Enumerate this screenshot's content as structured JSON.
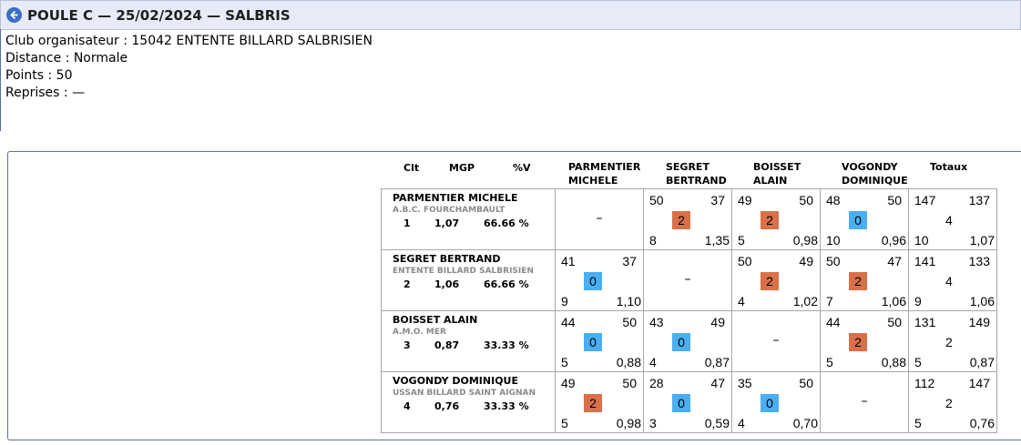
{
  "header": {
    "title": "POULE C — 25/02/2024 — SALBRIS"
  },
  "info": {
    "club": "Club organisateur : 15042 ENTENTE BILLARD SALBRISIEN",
    "distance": "Distance : Normale",
    "points": "Points : 50",
    "reprises": "Reprises : —"
  },
  "table": {
    "headers": {
      "clt": "Clt",
      "mgp": "MGP",
      "pctv": "%V",
      "c1": [
        "PARMENTIER",
        "MICHELE"
      ],
      "c2": [
        "SEGRET",
        "BERTRAND"
      ],
      "c3": [
        "BOISSET",
        "ALAIN"
      ],
      "c4": [
        "VOGONDY",
        "DOMINIQUE"
      ],
      "totals": "Totaux"
    },
    "dash": "–",
    "colors": {
      "win": "#d9704a",
      "loss": "#4aaef0"
    },
    "rows": [
      {
        "name": "PARMENTIER MICHELE",
        "club": "A.B.C. FOURCHAMBAULT",
        "clt": "1",
        "mgp": "1,07",
        "pct": "66.66 %",
        "cells": [
          null,
          {
            "a": "50",
            "b": "37",
            "pts": "2",
            "rep": "8",
            "avg": "1,35",
            "win": true
          },
          {
            "a": "49",
            "b": "50",
            "pts": "2",
            "rep": "5",
            "avg": "0,98",
            "win": true
          },
          {
            "a": "48",
            "b": "50",
            "pts": "0",
            "rep": "10",
            "avg": "0,96",
            "win": false
          }
        ],
        "total": {
          "a": "147",
          "b": "137",
          "pts": "4",
          "rep": "10",
          "avg": "1,07"
        }
      },
      {
        "name": "SEGRET BERTRAND",
        "club": "ENTENTE BILLARD SALBRISIEN",
        "clt": "2",
        "mgp": "1,06",
        "pct": "66.66 %",
        "cells": [
          {
            "a": "41",
            "b": "37",
            "pts": "0",
            "rep": "9",
            "avg": "1,10",
            "win": false
          },
          null,
          {
            "a": "50",
            "b": "49",
            "pts": "2",
            "rep": "4",
            "avg": "1,02",
            "win": true
          },
          {
            "a": "50",
            "b": "47",
            "pts": "2",
            "rep": "7",
            "avg": "1,06",
            "win": true
          }
        ],
        "total": {
          "a": "141",
          "b": "133",
          "pts": "4",
          "rep": "9",
          "avg": "1,06"
        }
      },
      {
        "name": "BOISSET ALAIN",
        "club": "A.M.O. MER",
        "clt": "3",
        "mgp": "0,87",
        "pct": "33.33 %",
        "cells": [
          {
            "a": "44",
            "b": "50",
            "pts": "0",
            "rep": "5",
            "avg": "0,88",
            "win": false
          },
          {
            "a": "43",
            "b": "49",
            "pts": "0",
            "rep": "4",
            "avg": "0,87",
            "win": false
          },
          null,
          {
            "a": "44",
            "b": "50",
            "pts": "2",
            "rep": "5",
            "avg": "0,88",
            "win": true
          }
        ],
        "total": {
          "a": "131",
          "b": "149",
          "pts": "2",
          "rep": "5",
          "avg": "0,87"
        }
      },
      {
        "name": "VOGONDY DOMINIQUE",
        "club": "USSAN BILLARD SAINT AIGNAN",
        "clt": "4",
        "mgp": "0,76",
        "pct": "33.33 %",
        "cells": [
          {
            "a": "49",
            "b": "50",
            "pts": "2",
            "rep": "5",
            "avg": "0,98",
            "win": true
          },
          {
            "a": "28",
            "b": "47",
            "pts": "0",
            "rep": "3",
            "avg": "0,59",
            "win": false
          },
          {
            "a": "35",
            "b": "50",
            "pts": "0",
            "rep": "4",
            "avg": "0,70",
            "win": false
          },
          null
        ],
        "total": {
          "a": "112",
          "b": "147",
          "pts": "2",
          "rep": "5",
          "avg": "0,76"
        }
      }
    ]
  }
}
